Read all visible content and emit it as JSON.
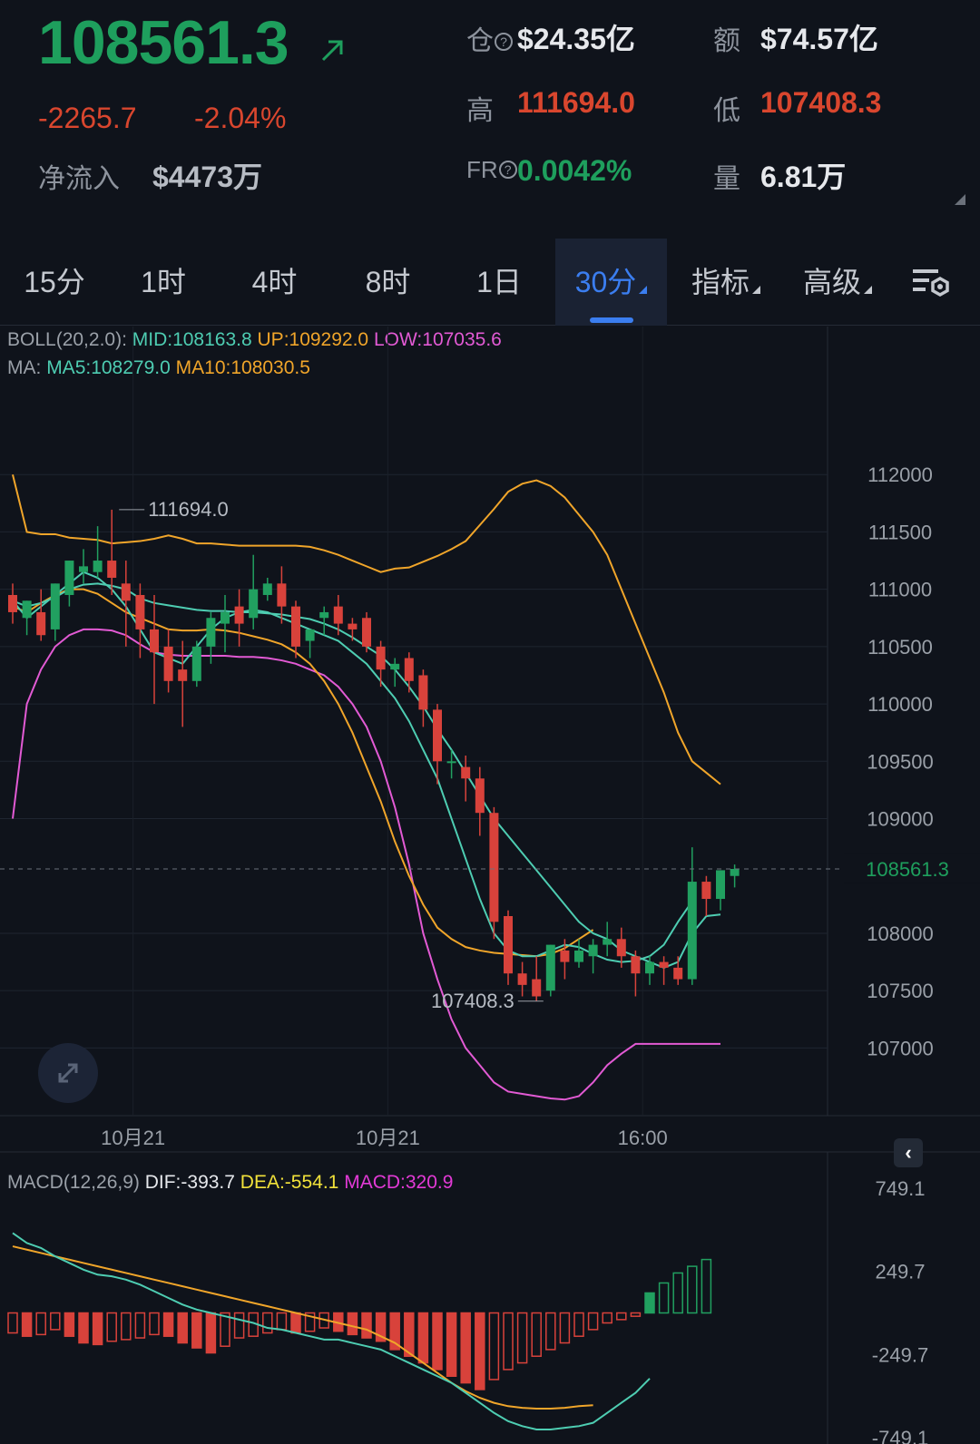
{
  "header": {
    "last_price": "108561.3",
    "change_abs": "-2265.7",
    "change_pct": "-2.04%",
    "netflow_label": "净流入",
    "netflow_value": "$4473万",
    "open_interest_label": "仓",
    "open_interest_value": "$24.35亿",
    "turnover_label": "额",
    "turnover_value": "$74.57亿",
    "high_label": "高",
    "high_value": "111694.0",
    "low_label": "低",
    "low_value": "107408.3",
    "funding_label": "FR",
    "funding_value": "0.0042%",
    "volume_label": "量",
    "volume_value": "6.81万"
  },
  "tabs": [
    {
      "label": "15分"
    },
    {
      "label": "1时"
    },
    {
      "label": "4时"
    },
    {
      "label": "8时"
    },
    {
      "label": "1日"
    },
    {
      "label": "30分",
      "active": true
    },
    {
      "label": "指标"
    },
    {
      "label": "高级"
    }
  ],
  "icons": {
    "price_arrow": "arrow-up-right-icon",
    "help": "question-circle-icon",
    "settings": "chart-settings-icon",
    "expand": "expand-icon",
    "collapse": "chevron-left-icon"
  },
  "colors": {
    "up": "#1e9f5d",
    "down": "#d9462e",
    "candle_up": "#21a060",
    "candle_down": "#d8423b",
    "mid": "#4ecdb2",
    "upper": "#f0a52a",
    "lower": "#e25ad4",
    "ma5": "#4ecdb2",
    "ma10": "#f0a52a",
    "dif": "#4ecdb2",
    "dea": "#f0a52a"
  },
  "chart_data": {
    "type": "candlestick",
    "boll": {
      "label": "BOLL(20,2.0):",
      "mid_label": "MID:108163.8",
      "up_label": "UP:109292.0",
      "low_label": "LOW:107035.6"
    },
    "ma": {
      "label": "MA:",
      "ma5_label": "MA5:108279.0",
      "ma10_label": "MA10:108030.5"
    },
    "y_ticks": [
      "112000",
      "111500",
      "111000",
      "110500",
      "110000",
      "109500",
      "109000",
      "108000",
      "107500",
      "107000"
    ],
    "ylim": [
      106410,
      112500
    ],
    "x_ticks": [
      "10月21",
      "10月21",
      "16:00"
    ],
    "x_tick_index": [
      8.5,
      26.5,
      44.5
    ],
    "current_price_label": "108561.3",
    "current_price": 108561.3,
    "high_annotation": "111694.0",
    "high_value": 111694.0,
    "high_index": 7,
    "low_annotation": "107408.3",
    "low_value": 107408.3,
    "low_index": 38,
    "candles": [
      {
        "o": 110950,
        "h": 111050,
        "c": 110800,
        "l": 110700
      },
      {
        "o": 110750,
        "h": 110900,
        "c": 110900,
        "l": 110600
      },
      {
        "o": 110800,
        "h": 111000,
        "c": 110600,
        "l": 110550
      },
      {
        "o": 110650,
        "h": 111050,
        "c": 111050,
        "l": 110550
      },
      {
        "o": 110950,
        "h": 111250,
        "c": 111250,
        "l": 110850
      },
      {
        "o": 111150,
        "h": 111350,
        "c": 111200,
        "l": 111050
      },
      {
        "o": 111150,
        "h": 111550,
        "c": 111250,
        "l": 111100
      },
      {
        "o": 111250,
        "h": 111694,
        "c": 111100,
        "l": 110950
      },
      {
        "o": 111050,
        "h": 111250,
        "c": 110900,
        "l": 110500
      },
      {
        "o": 110950,
        "h": 111050,
        "c": 110650,
        "l": 110400
      },
      {
        "o": 110650,
        "h": 110950,
        "c": 110450,
        "l": 110000
      },
      {
        "o": 110500,
        "h": 110650,
        "c": 110200,
        "l": 110100
      },
      {
        "o": 110300,
        "h": 110550,
        "c": 110200,
        "l": 109800
      },
      {
        "o": 110200,
        "h": 110550,
        "c": 110500,
        "l": 110150
      },
      {
        "o": 110500,
        "h": 110800,
        "c": 110750,
        "l": 110350
      },
      {
        "o": 110700,
        "h": 110950,
        "c": 110800,
        "l": 110450
      },
      {
        "o": 110850,
        "h": 111000,
        "c": 110700,
        "l": 110500
      },
      {
        "o": 110750,
        "h": 111300,
        "c": 111000,
        "l": 110650
      },
      {
        "o": 110950,
        "h": 111100,
        "c": 111050,
        "l": 110900
      },
      {
        "o": 111050,
        "h": 111200,
        "c": 110850,
        "l": 110700
      },
      {
        "o": 110850,
        "h": 110900,
        "c": 110500,
        "l": 110400
      },
      {
        "o": 110550,
        "h": 110650,
        "c": 110650,
        "l": 110400
      },
      {
        "o": 110750,
        "h": 110850,
        "c": 110800,
        "l": 110600
      },
      {
        "o": 110850,
        "h": 110950,
        "c": 110700,
        "l": 110600
      },
      {
        "o": 110700,
        "h": 110750,
        "c": 110650,
        "l": 110550
      },
      {
        "o": 110750,
        "h": 110800,
        "c": 110500,
        "l": 110450
      },
      {
        "o": 110500,
        "h": 110550,
        "c": 110300,
        "l": 110150
      },
      {
        "o": 110300,
        "h": 110400,
        "c": 110350,
        "l": 110150
      },
      {
        "o": 110400,
        "h": 110450,
        "c": 110200,
        "l": 110100
      },
      {
        "o": 110250,
        "h": 110300,
        "c": 109950,
        "l": 109800
      },
      {
        "o": 109950,
        "h": 110000,
        "c": 109500,
        "l": 109300
      },
      {
        "o": 109500,
        "h": 109600,
        "c": 109500,
        "l": 109350
      },
      {
        "o": 109450,
        "h": 109550,
        "c": 109350,
        "l": 109150
      },
      {
        "o": 109350,
        "h": 109450,
        "c": 109050,
        "l": 108850
      },
      {
        "o": 109050,
        "h": 109100,
        "c": 108100,
        "l": 107950
      },
      {
        "o": 108150,
        "h": 108200,
        "c": 107650,
        "l": 107550
      },
      {
        "o": 107650,
        "h": 107750,
        "c": 107550,
        "l": 107450
      },
      {
        "o": 107600,
        "h": 107800,
        "c": 107450,
        "l": 107408.3
      },
      {
        "o": 107500,
        "h": 107900,
        "c": 107900,
        "l": 107450
      },
      {
        "o": 107850,
        "h": 107950,
        "c": 107750,
        "l": 107600
      },
      {
        "o": 107750,
        "h": 107950,
        "c": 107850,
        "l": 107700
      },
      {
        "o": 107800,
        "h": 107950,
        "c": 107900,
        "l": 107650
      },
      {
        "o": 107900,
        "h": 108100,
        "c": 107950,
        "l": 107800
      },
      {
        "o": 107950,
        "h": 108050,
        "c": 107800,
        "l": 107700
      },
      {
        "o": 107800,
        "h": 107850,
        "c": 107650,
        "l": 107450
      },
      {
        "o": 107650,
        "h": 107800,
        "c": 107750,
        "l": 107550
      },
      {
        "o": 107750,
        "h": 107800,
        "c": 107700,
        "l": 107550
      },
      {
        "o": 107700,
        "h": 107800,
        "c": 107600,
        "l": 107550
      },
      {
        "o": 107600,
        "h": 108750,
        "c": 108450,
        "l": 107550
      },
      {
        "o": 108450,
        "h": 108500,
        "c": 108300,
        "l": 108150
      },
      {
        "o": 108300,
        "h": 108550,
        "c": 108550,
        "l": 108200
      },
      {
        "o": 108500,
        "h": 108600,
        "c": 108561.3,
        "l": 108400
      }
    ],
    "boll_upper": [
      112000,
      111500,
      111480,
      111480,
      111450,
      111440,
      111430,
      111400,
      111410,
      111420,
      111440,
      111470,
      111440,
      111400,
      111400,
      111390,
      111380,
      111380,
      111380,
      111380,
      111380,
      111370,
      111340,
      111300,
      111250,
      111200,
      111150,
      111180,
      111190,
      111240,
      111290,
      111350,
      111420,
      111560,
      111700,
      111850,
      111920,
      111950,
      111900,
      111800,
      111650,
      111500,
      111300,
      111000,
      110700,
      110400,
      110100,
      109750,
      109500,
      109400,
      109300
    ],
    "boll_mid": [
      110900,
      110850,
      110880,
      110930,
      111000,
      111040,
      111050,
      111030,
      111000,
      110920,
      110880,
      110860,
      110840,
      110820,
      110810,
      110810,
      110800,
      110800,
      110790,
      110780,
      110760,
      110740,
      110700,
      110650,
      110580,
      110500,
      110420,
      110300,
      110150,
      109980,
      109780,
      109600,
      109400,
      109200,
      109000,
      108850,
      108700,
      108550,
      108400,
      108250,
      108100,
      108000,
      107950,
      107850,
      107800,
      107750,
      107700,
      107750,
      108000,
      108150,
      108163.8
    ],
    "boll_lower": [
      109000,
      110000,
      110300,
      110500,
      110600,
      110650,
      110650,
      110640,
      110600,
      110520,
      110450,
      110430,
      110420,
      110420,
      110420,
      110420,
      110410,
      110410,
      110400,
      110380,
      110350,
      110300,
      110250,
      110150,
      110000,
      109800,
      109500,
      109100,
      108600,
      108000,
      107600,
      107250,
      107000,
      106850,
      106700,
      106620,
      106600,
      106580,
      106560,
      106550,
      106580,
      106700,
      106850,
      106950,
      107035.6,
      107035.6,
      107035.6,
      107035.6,
      107035.6,
      107035.6,
      107035.6
    ],
    "ma5": [
      110900,
      110750,
      110850,
      110950,
      111050,
      111150,
      111100,
      111000,
      110850,
      110650,
      110450,
      110400,
      110350,
      110500,
      110650,
      110750,
      110800,
      110820,
      110800,
      110750,
      110700,
      110650,
      110600,
      110550,
      110450,
      110350,
      110200,
      110050,
      109850,
      109600,
      109350,
      109000,
      108650,
      108300,
      108000,
      107850,
      107800,
      107800,
      107850,
      107900,
      107880,
      107820,
      107770,
      107750,
      107760,
      107800,
      107900,
      108100,
      108279
    ],
    "ma10": [
      110850,
      110800,
      110880,
      110950,
      111000,
      111000,
      110960,
      110880,
      110800,
      110750,
      110700,
      110650,
      110640,
      110640,
      110650,
      110640,
      110620,
      110590,
      110560,
      110520,
      110450,
      110350,
      110200,
      110000,
      109750,
      109450,
      109150,
      108800,
      108500,
      108250,
      108050,
      107950,
      107880,
      107850,
      107830,
      107820,
      107810,
      107800,
      107820,
      107870,
      107950,
      108030.5
    ],
    "macd": {
      "label": "MACD(12,26,9)",
      "dif_label": "DIF:-393.7",
      "dea_label": "DEA:-554.1",
      "macd_label": "MACD:320.9",
      "y_ticks": [
        "749.1",
        "249.7",
        "-249.7",
        "-749.1"
      ],
      "ylim": [
        -749.1,
        749.1
      ],
      "dif": [
        480,
        420,
        390,
        340,
        300,
        260,
        230,
        220,
        200,
        170,
        130,
        90,
        50,
        20,
        0,
        -20,
        -40,
        -60,
        -90,
        -100,
        -120,
        -140,
        -160,
        -160,
        -180,
        -200,
        -220,
        -260,
        -300,
        -340,
        -380,
        -420,
        -480,
        -540,
        -600,
        -650,
        -680,
        -700,
        -700,
        -690,
        -680,
        -660,
        -600,
        -540,
        -480,
        -393.7
      ],
      "dea": [
        400,
        380,
        360,
        340,
        320,
        300,
        280,
        260,
        240,
        220,
        200,
        180,
        160,
        140,
        120,
        100,
        80,
        60,
        40,
        20,
        0,
        -20,
        -40,
        -60,
        -80,
        -100,
        -140,
        -180,
        -240,
        -300,
        -360,
        -420,
        -470,
        -510,
        -540,
        -560,
        -570,
        -575,
        -575,
        -570,
        -560,
        -554.1
      ],
      "hist": [
        -120,
        -140,
        -130,
        -100,
        -140,
        -180,
        -190,
        -170,
        -160,
        -150,
        -130,
        -140,
        -180,
        -210,
        -240,
        -200,
        -150,
        -140,
        -120,
        -100,
        -120,
        -110,
        -90,
        -110,
        -130,
        -150,
        -170,
        -220,
        -260,
        -300,
        -340,
        -380,
        -420,
        -460,
        -400,
        -340,
        -300,
        -260,
        -220,
        -180,
        -140,
        -100,
        -60,
        -40,
        -20,
        120,
        180,
        240,
        280,
        320.9
      ]
    }
  }
}
